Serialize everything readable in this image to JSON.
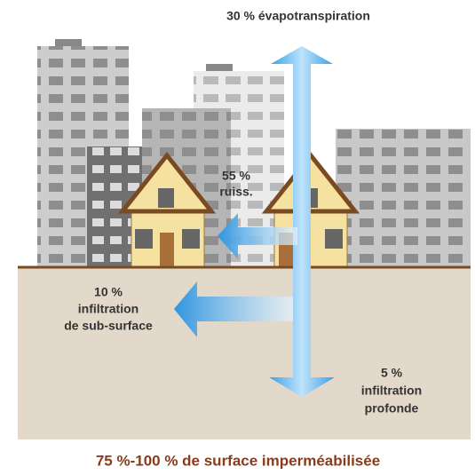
{
  "flows": [
    {
      "lines": [
        "30 % évapotranspiration"
      ]
    },
    {
      "lines": [
        "55 %",
        "ruiss."
      ]
    },
    {
      "lines": [
        "10 %",
        "infiltration",
        "de sub-surface"
      ]
    },
    {
      "lines": [
        "5 %",
        "infiltration",
        "profonde"
      ]
    }
  ],
  "caption": "75 %-100 % de surface imperméabilisée"
}
